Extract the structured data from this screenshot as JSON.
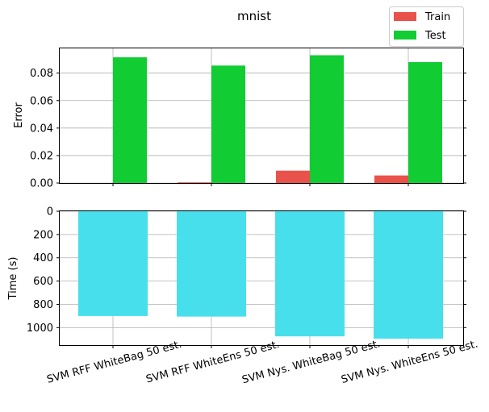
{
  "chart_data": [
    {
      "type": "bar",
      "title": "mnist",
      "xlabel": "",
      "ylabel": "Error",
      "categories": [
        "SVM RFF WhiteBag 50 est.",
        "SVM RFF WhiteEns 50 est.",
        "SVM Nys. WhiteBag 50 est.",
        "SVM Nys. WhiteEns 50 est."
      ],
      "series": [
        {
          "name": "Train",
          "color": "#e8524a",
          "values": [
            0.0,
            0.0005,
            0.009,
            0.0055
          ]
        },
        {
          "name": "Test",
          "color": "#11cc33",
          "values": [
            0.0915,
            0.0855,
            0.093,
            0.088
          ]
        }
      ],
      "ylim": [
        0,
        0.098
      ],
      "yticks": [
        0.0,
        0.02,
        0.04,
        0.06,
        0.08
      ],
      "ytick_labels": [
        "0.00",
        "0.02",
        "0.04",
        "0.06",
        "0.08"
      ],
      "grid": true,
      "legend": "top-right"
    },
    {
      "type": "bar",
      "xlabel": "",
      "ylabel": "Time (s)",
      "categories": [
        "SVM RFF WhiteBag 50 est.",
        "SVM RFF WhiteEns 50 est.",
        "SVM Nys. WhiteBag 50 est.",
        "SVM Nys. WhiteEns 50 est."
      ],
      "series": [
        {
          "color": "#48dfed",
          "values": [
            900,
            905,
            1075,
            1095
          ]
        }
      ],
      "ylim": [
        1150,
        0
      ],
      "y_inverted": true,
      "yticks": [
        0,
        200,
        400,
        600,
        800,
        1000
      ],
      "ytick_labels": [
        "0",
        "200",
        "400",
        "600",
        "800",
        "1000"
      ],
      "grid": true
    }
  ]
}
